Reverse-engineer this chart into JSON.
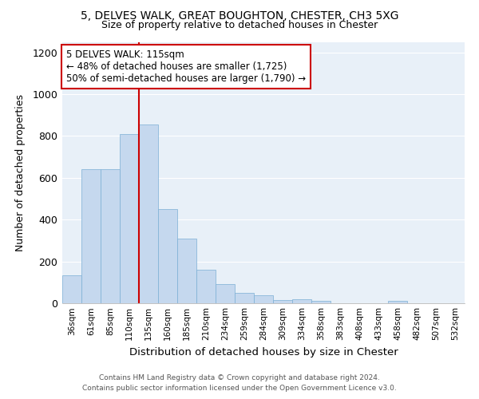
{
  "title1": "5, DELVES WALK, GREAT BOUGHTON, CHESTER, CH3 5XG",
  "title2": "Size of property relative to detached houses in Chester",
  "xlabel": "Distribution of detached houses by size in Chester",
  "ylabel": "Number of detached properties",
  "categories": [
    "36sqm",
    "61sqm",
    "85sqm",
    "110sqm",
    "135sqm",
    "160sqm",
    "185sqm",
    "210sqm",
    "234sqm",
    "259sqm",
    "284sqm",
    "309sqm",
    "334sqm",
    "358sqm",
    "383sqm",
    "408sqm",
    "433sqm",
    "458sqm",
    "482sqm",
    "507sqm",
    "532sqm"
  ],
  "values": [
    135,
    640,
    640,
    810,
    855,
    450,
    310,
    160,
    90,
    50,
    38,
    15,
    18,
    12,
    0,
    0,
    0,
    12,
    0,
    0,
    0
  ],
  "bar_color": "#c5d8ee",
  "bar_edge_color": "#7bafd4",
  "vline_color": "#cc0000",
  "vline_x_index": 3,
  "annotation_title": "5 DELVES WALK: 115sqm",
  "annotation_line1": "← 48% of detached houses are smaller (1,725)",
  "annotation_line2": "50% of semi-detached houses are larger (1,790) →",
  "annotation_box_color": "#ffffff",
  "annotation_box_edge": "#cc0000",
  "ylim": [
    0,
    1250
  ],
  "yticks": [
    0,
    200,
    400,
    600,
    800,
    1000,
    1200
  ],
  "bg_color": "#e8f0f8",
  "grid_color": "#ffffff",
  "footer1": "Contains HM Land Registry data © Crown copyright and database right 2024.",
  "footer2": "Contains public sector information licensed under the Open Government Licence v3.0."
}
